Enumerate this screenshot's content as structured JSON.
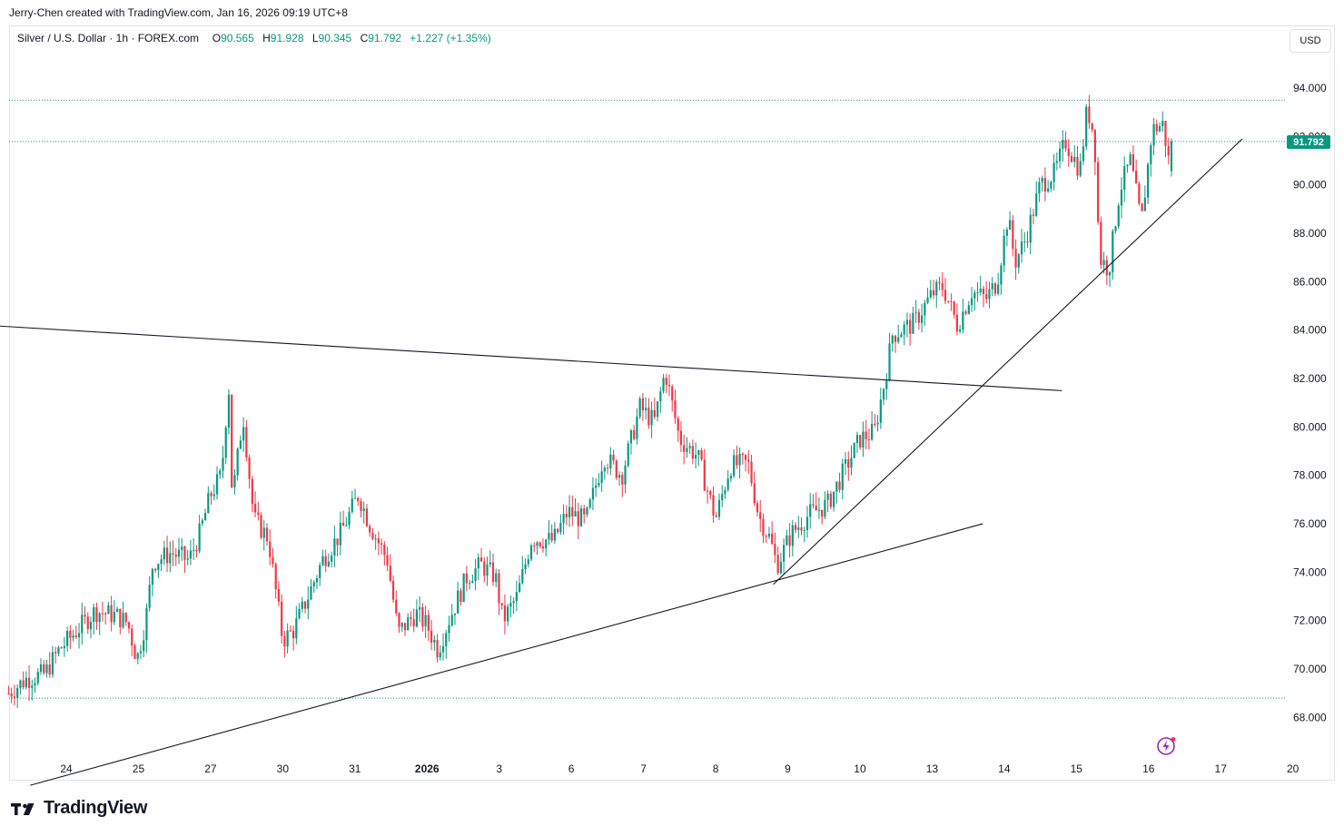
{
  "header": {
    "attribution": "Jerry-Chen created with TradingView.com, Jan 16, 2026 09:19 UTC+8"
  },
  "legend": {
    "symbol": "Silver / U.S. Dollar · 1h · FOREX.com",
    "open_label": "O",
    "open": "90.565",
    "high_label": "H",
    "high": "91.928",
    "low_label": "L",
    "low": "90.345",
    "close_label": "C",
    "close": "91.792",
    "change": "+1.227 (+1.35%)"
  },
  "currency_button": "USD",
  "last_price_badge": "91.792",
  "footer": {
    "brand": "TradingView"
  },
  "colors": {
    "up": "#089981",
    "down": "#f23645",
    "line": "#131722",
    "dotted": "#2a8a7a",
    "grid_text": "#131722"
  },
  "icons": {
    "logo": "tradingview-logo-icon",
    "bolt": "lightning-icon"
  },
  "chart_data": {
    "type": "candlestick",
    "title": "Silver / U.S. Dollar · 1h · FOREX.com",
    "ylim": [
      66.0,
      96.0
    ],
    "y_ticks": [
      "94.000",
      "92.000",
      "90.000",
      "88.000",
      "86.000",
      "84.000",
      "82.000",
      "80.000",
      "78.000",
      "76.000",
      "74.000",
      "72.000",
      "70.000",
      "68.000"
    ],
    "y_tick_values": [
      94,
      92,
      90,
      88,
      86,
      84,
      82,
      80,
      78,
      76,
      74,
      72,
      70,
      68
    ],
    "x_ticks": [
      {
        "label": "24",
        "pos": 0.0
      },
      {
        "label": "25",
        "pos": 1.0
      },
      {
        "label": "27",
        "pos": 2.0
      },
      {
        "label": "30",
        "pos": 3.0
      },
      {
        "label": "31",
        "pos": 4.0
      },
      {
        "label": "2026",
        "pos": 5.0,
        "bold": true
      },
      {
        "label": "3",
        "pos": 6.0
      },
      {
        "label": "6",
        "pos": 7.0
      },
      {
        "label": "7",
        "pos": 8.0
      },
      {
        "label": "8",
        "pos": 9.0
      },
      {
        "label": "9",
        "pos": 10.0
      },
      {
        "label": "10",
        "pos": 11.0
      },
      {
        "label": "13",
        "pos": 12.0
      },
      {
        "label": "14",
        "pos": 13.0
      },
      {
        "label": "15",
        "pos": 14.0
      },
      {
        "label": "16",
        "pos": 15.0
      },
      {
        "label": "17",
        "pos": 16.0
      },
      {
        "label": "20",
        "pos": 17.0
      }
    ],
    "x_range": [
      -0.8,
      17.0
    ],
    "reference_levels": [
      93.5,
      91.792,
      68.8
    ],
    "trendlines": [
      {
        "name": "resistance",
        "from": [
          -1.1,
          84.2
        ],
        "to": [
          13.8,
          81.5
        ]
      },
      {
        "name": "lower-support",
        "from": [
          -0.5,
          65.2
        ],
        "to": [
          12.7,
          76.0
        ]
      },
      {
        "name": "steep-support",
        "from": [
          9.8,
          73.5
        ],
        "to": [
          16.3,
          91.9
        ]
      }
    ],
    "anchors": [
      {
        "t": -0.8,
        "p": 69.0
      },
      {
        "t": -0.55,
        "p": 69.6
      },
      {
        "t": -0.3,
        "p": 69.8
      },
      {
        "t": -0.1,
        "p": 70.8
      },
      {
        "t": 0.15,
        "p": 71.6
      },
      {
        "t": 0.4,
        "p": 72.4
      },
      {
        "t": 0.7,
        "p": 72.2
      },
      {
        "t": 0.85,
        "p": 71.9
      },
      {
        "t": 0.98,
        "p": 70.4
      },
      {
        "t": 1.1,
        "p": 72.0
      },
      {
        "t": 1.2,
        "p": 74.4
      },
      {
        "t": 1.45,
        "p": 74.8
      },
      {
        "t": 1.7,
        "p": 74.5
      },
      {
        "t": 1.85,
        "p": 75.6
      },
      {
        "t": 2.0,
        "p": 77.2
      },
      {
        "t": 2.15,
        "p": 78.0
      },
      {
        "t": 2.25,
        "p": 81.8
      },
      {
        "t": 2.3,
        "p": 77.0
      },
      {
        "t": 2.45,
        "p": 80.5
      },
      {
        "t": 2.6,
        "p": 76.2
      },
      {
        "t": 2.8,
        "p": 75.4
      },
      {
        "t": 3.0,
        "p": 71.2
      },
      {
        "t": 3.15,
        "p": 71.6
      },
      {
        "t": 3.35,
        "p": 73.0
      },
      {
        "t": 3.55,
        "p": 74.5
      },
      {
        "t": 3.8,
        "p": 75.6
      },
      {
        "t": 4.05,
        "p": 77.2
      },
      {
        "t": 4.2,
        "p": 76.0
      },
      {
        "t": 4.45,
        "p": 74.5
      },
      {
        "t": 4.6,
        "p": 71.5
      },
      {
        "t": 4.85,
        "p": 72.3
      },
      {
        "t": 5.0,
        "p": 71.8
      },
      {
        "t": 5.15,
        "p": 70.8
      },
      {
        "t": 5.3,
        "p": 72.0
      },
      {
        "t": 5.55,
        "p": 73.8
      },
      {
        "t": 5.75,
        "p": 74.3
      },
      {
        "t": 5.95,
        "p": 73.8
      },
      {
        "t": 6.05,
        "p": 72.0
      },
      {
        "t": 6.25,
        "p": 73.0
      },
      {
        "t": 6.45,
        "p": 75.4
      },
      {
        "t": 6.75,
        "p": 75.3
      },
      {
        "t": 6.95,
        "p": 76.5
      },
      {
        "t": 7.2,
        "p": 76.1
      },
      {
        "t": 7.45,
        "p": 78.8
      },
      {
        "t": 7.7,
        "p": 78.0
      },
      {
        "t": 7.95,
        "p": 80.8
      },
      {
        "t": 8.15,
        "p": 80.2
      },
      {
        "t": 8.3,
        "p": 82.3
      },
      {
        "t": 8.5,
        "p": 79.5
      },
      {
        "t": 8.75,
        "p": 78.8
      },
      {
        "t": 9.0,
        "p": 76.2
      },
      {
        "t": 9.2,
        "p": 78.4
      },
      {
        "t": 9.45,
        "p": 78.5
      },
      {
        "t": 9.6,
        "p": 76.3
      },
      {
        "t": 9.75,
        "p": 75.4
      },
      {
        "t": 9.85,
        "p": 74.3
      },
      {
        "t": 10.05,
        "p": 75.6
      },
      {
        "t": 10.3,
        "p": 76.4
      },
      {
        "t": 10.55,
        "p": 76.8
      },
      {
        "t": 10.75,
        "p": 78.0
      },
      {
        "t": 11.0,
        "p": 79.5
      },
      {
        "t": 11.2,
        "p": 79.8
      },
      {
        "t": 11.35,
        "p": 82.0
      },
      {
        "t": 11.45,
        "p": 83.8
      },
      {
        "t": 11.75,
        "p": 84.3
      },
      {
        "t": 12.0,
        "p": 85.5
      },
      {
        "t": 12.15,
        "p": 85.8
      },
      {
        "t": 12.35,
        "p": 84.2
      },
      {
        "t": 12.55,
        "p": 85.6
      },
      {
        "t": 12.75,
        "p": 85.3
      },
      {
        "t": 12.9,
        "p": 86.0
      },
      {
        "t": 13.05,
        "p": 88.7
      },
      {
        "t": 13.15,
        "p": 86.8
      },
      {
        "t": 13.3,
        "p": 87.8
      },
      {
        "t": 13.5,
        "p": 90.0
      },
      {
        "t": 13.7,
        "p": 90.5
      },
      {
        "t": 13.85,
        "p": 91.8
      },
      {
        "t": 14.05,
        "p": 90.6
      },
      {
        "t": 14.15,
        "p": 93.2
      },
      {
        "t": 14.25,
        "p": 92.0
      },
      {
        "t": 14.32,
        "p": 87.0
      },
      {
        "t": 14.45,
        "p": 86.5
      },
      {
        "t": 14.6,
        "p": 89.8
      },
      {
        "t": 14.75,
        "p": 91.0
      },
      {
        "t": 14.9,
        "p": 88.4
      },
      {
        "t": 15.05,
        "p": 92.3
      },
      {
        "t": 15.2,
        "p": 92.5
      },
      {
        "t": 15.3,
        "p": 90.6
      },
      {
        "t": 15.35,
        "p": 91.792
      }
    ]
  }
}
